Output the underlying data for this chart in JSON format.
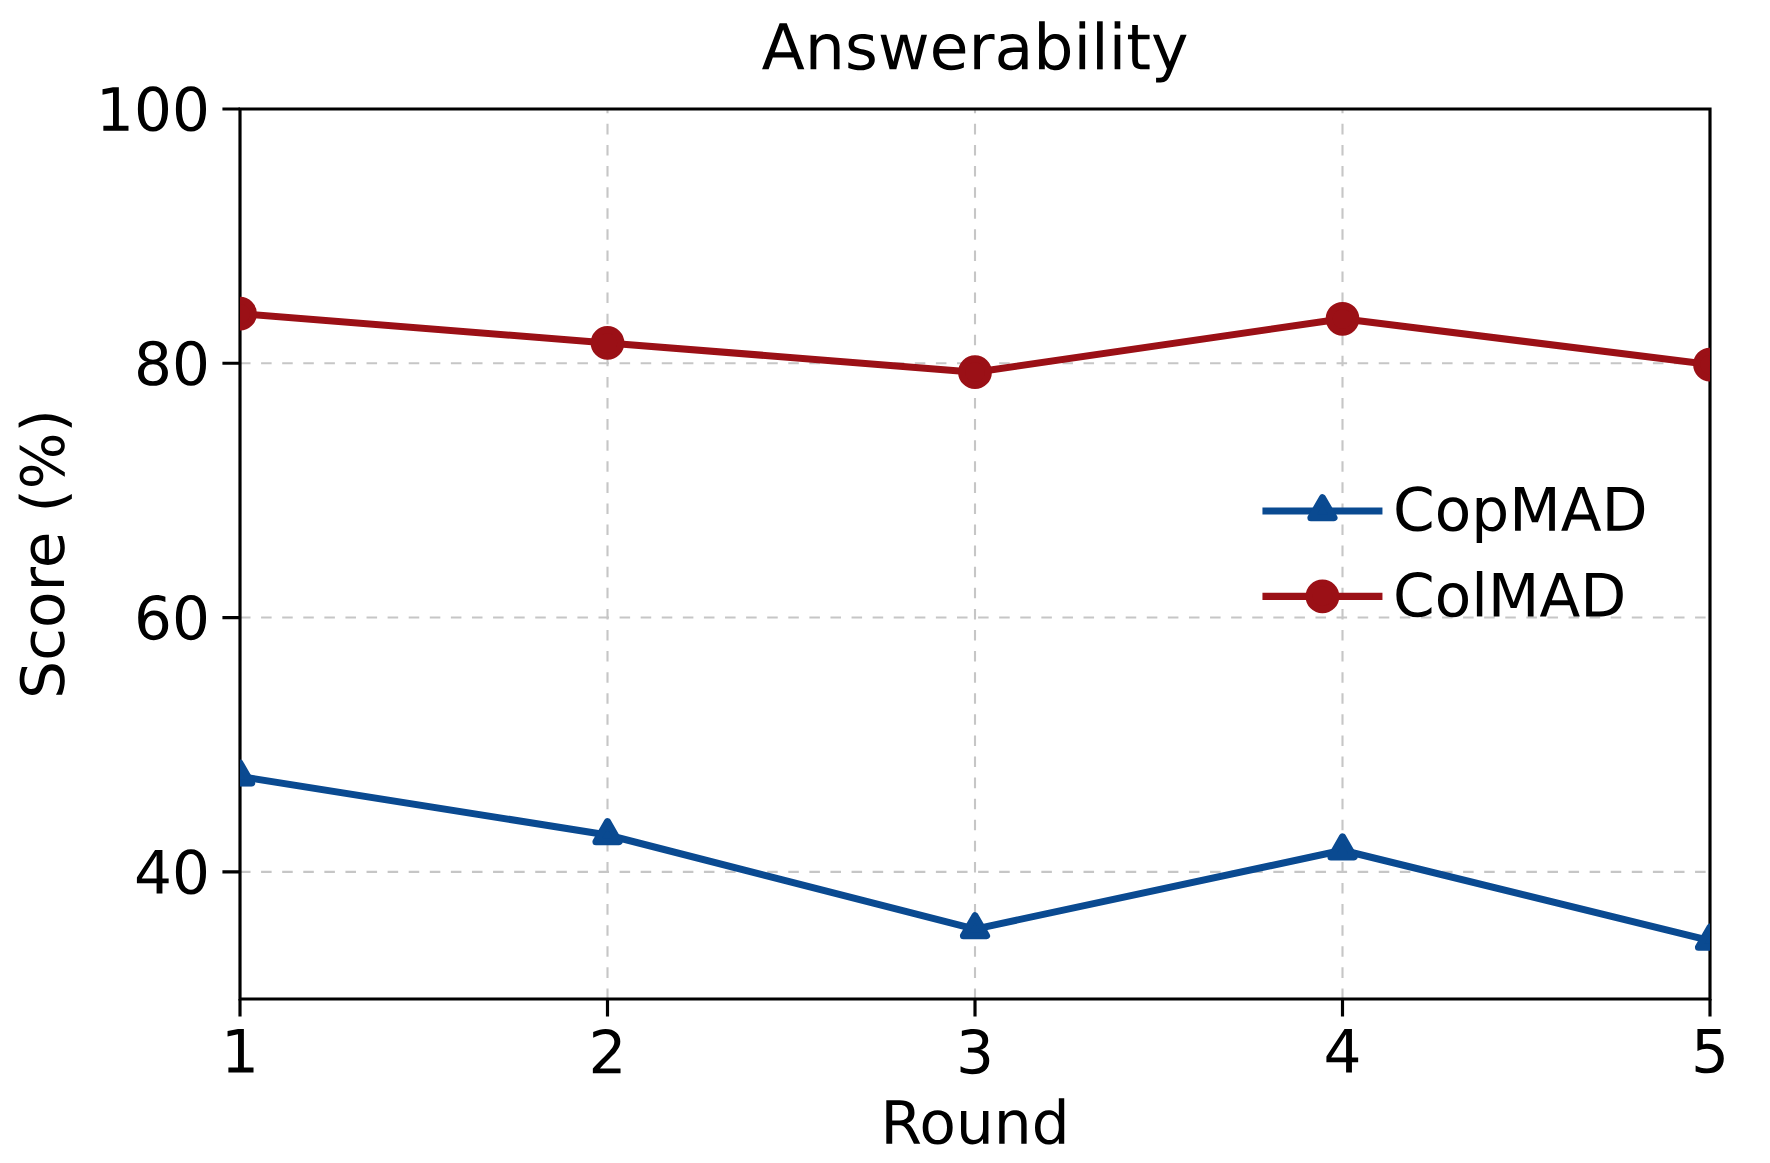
{
  "chart_data": {
    "type": "line",
    "title": "Answerability",
    "xlabel": "Round",
    "ylabel": "Score (%)",
    "x": [
      1,
      2,
      3,
      4,
      5
    ],
    "series": [
      {
        "name": "CopMAD",
        "color": "#0a4a91",
        "marker": "triangle",
        "values": [
          47.5,
          42.9,
          35.5,
          41.7,
          34.6
        ]
      },
      {
        "name": "ColMAD",
        "color": "#9b1016",
        "marker": "circle",
        "values": [
          83.9,
          81.6,
          79.3,
          83.5,
          79.9
        ]
      }
    ],
    "xlim": [
      1,
      5
    ],
    "xticks": [
      1,
      2,
      3,
      4,
      5
    ],
    "ylim": [
      30,
      100
    ],
    "yticks": [
      40,
      60,
      80,
      100
    ],
    "grid": true,
    "legend": "right",
    "line_style": "solid"
  }
}
